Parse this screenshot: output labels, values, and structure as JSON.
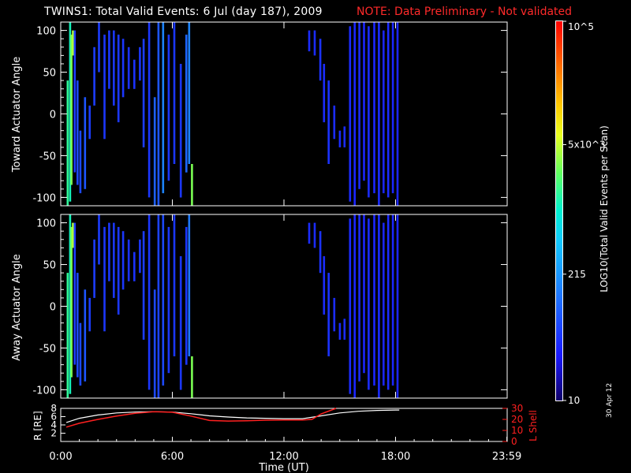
{
  "title": {
    "main": "TWINS1: Total Valid Events:  6 Jul (day 187), 2009",
    "note": "NOTE: Data Preliminary - Not validated"
  },
  "colors": {
    "background": "#000000",
    "axes": "#ffffff",
    "note": "#ff2a2a",
    "rshell_line": "#ffffff",
    "lshell_line": "#ff2020"
  },
  "chart_data": [
    {
      "type": "heatmap",
      "panel": "toward",
      "ylabel": "Toward Actuator Angle",
      "ylim": [
        -110,
        110
      ],
      "yticks": [
        "100",
        "50",
        "0",
        "-50",
        "-100"
      ],
      "xlim": [
        0,
        24
      ],
      "xtick_labels": [
        "0:00",
        "6:00",
        "12:00",
        "18:00",
        "23:59"
      ],
      "colorbar_scale": "log",
      "series": [
        {
          "name": "strips",
          "values": [
            {
              "t": 0.32,
              "ymin": -110,
              "ymax": 40,
              "c": 0.55
            },
            {
              "t": 0.45,
              "ymin": -105,
              "ymax": 110,
              "c": 0.52
            },
            {
              "t": 0.52,
              "ymin": -85,
              "ymax": 95,
              "c": 0.62
            },
            {
              "t": 0.6,
              "ymin": 70,
              "ymax": 100,
              "c": 0.66
            },
            {
              "t": 0.7,
              "ymin": -70,
              "ymax": 100,
              "c": 0.18
            },
            {
              "t": 0.85,
              "ymin": -85,
              "ymax": 40,
              "c": 0.2
            },
            {
              "t": 1.0,
              "ymin": -95,
              "ymax": -20,
              "c": 0.2
            },
            {
              "t": 1.25,
              "ymin": -90,
              "ymax": 20,
              "c": 0.22
            },
            {
              "t": 1.5,
              "ymin": -30,
              "ymax": 10,
              "c": 0.18
            },
            {
              "t": 1.75,
              "ymin": 10,
              "ymax": 80,
              "c": 0.18
            },
            {
              "t": 2.0,
              "ymin": 50,
              "ymax": 110,
              "c": 0.18
            },
            {
              "t": 2.3,
              "ymin": -30,
              "ymax": 95,
              "c": 0.17
            },
            {
              "t": 2.55,
              "ymin": 30,
              "ymax": 100,
              "c": 0.17
            },
            {
              "t": 2.8,
              "ymin": 10,
              "ymax": 100,
              "c": 0.17
            },
            {
              "t": 3.05,
              "ymin": -10,
              "ymax": 95,
              "c": 0.17
            },
            {
              "t": 3.3,
              "ymin": 20,
              "ymax": 90,
              "c": 0.17
            },
            {
              "t": 3.6,
              "ymin": 30,
              "ymax": 80,
              "c": 0.16
            },
            {
              "t": 3.9,
              "ymin": 30,
              "ymax": 65,
              "c": 0.16
            },
            {
              "t": 4.2,
              "ymin": 40,
              "ymax": 80,
              "c": 0.17
            },
            {
              "t": 4.4,
              "ymin": -40,
              "ymax": 90,
              "c": 0.18
            },
            {
              "t": 4.7,
              "ymin": -100,
              "ymax": 110,
              "c": 0.17
            },
            {
              "t": 5.0,
              "ymin": -110,
              "ymax": 20,
              "c": 0.24
            },
            {
              "t": 5.2,
              "ymin": -110,
              "ymax": 110,
              "c": 0.22
            },
            {
              "t": 5.45,
              "ymin": -95,
              "ymax": 110,
              "c": 0.3
            },
            {
              "t": 5.75,
              "ymin": -80,
              "ymax": 95,
              "c": 0.17
            },
            {
              "t": 6.05,
              "ymin": -60,
              "ymax": 110,
              "c": 0.17
            },
            {
              "t": 6.4,
              "ymin": -100,
              "ymax": 60,
              "c": 0.17
            },
            {
              "t": 6.7,
              "ymin": -70,
              "ymax": 95,
              "c": 0.25
            },
            {
              "t": 6.85,
              "ymin": -60,
              "ymax": 110,
              "c": 0.3
            },
            {
              "t": 7.0,
              "ymin": -110,
              "ymax": -60,
              "c": 0.62
            },
            {
              "t": 13.3,
              "ymin": 75,
              "ymax": 100,
              "c": 0.15
            },
            {
              "t": 13.6,
              "ymin": 70,
              "ymax": 100,
              "c": 0.15
            },
            {
              "t": 13.9,
              "ymin": 40,
              "ymax": 90,
              "c": 0.16
            },
            {
              "t": 14.1,
              "ymin": -10,
              "ymax": 60,
              "c": 0.15
            },
            {
              "t": 14.35,
              "ymin": -60,
              "ymax": 40,
              "c": 0.16
            },
            {
              "t": 14.65,
              "ymin": -30,
              "ymax": 10,
              "c": 0.15
            },
            {
              "t": 14.95,
              "ymin": -40,
              "ymax": -20,
              "c": 0.15
            },
            {
              "t": 15.2,
              "ymin": -40,
              "ymax": -15,
              "c": 0.15
            },
            {
              "t": 15.5,
              "ymin": -105,
              "ymax": 105,
              "c": 0.15
            },
            {
              "t": 15.75,
              "ymin": -110,
              "ymax": 110,
              "c": 0.14
            },
            {
              "t": 16.0,
              "ymin": -90,
              "ymax": 110,
              "c": 0.15
            },
            {
              "t": 16.25,
              "ymin": -80,
              "ymax": 110,
              "c": 0.14
            },
            {
              "t": 16.5,
              "ymin": -100,
              "ymax": 105,
              "c": 0.15
            },
            {
              "t": 16.8,
              "ymin": -95,
              "ymax": 110,
              "c": 0.14
            },
            {
              "t": 17.05,
              "ymin": -110,
              "ymax": 110,
              "c": 0.15
            },
            {
              "t": 17.3,
              "ymin": -95,
              "ymax": 100,
              "c": 0.14
            },
            {
              "t": 17.55,
              "ymin": -100,
              "ymax": 110,
              "c": 0.15
            },
            {
              "t": 17.8,
              "ymin": -95,
              "ymax": 110,
              "c": 0.14
            },
            {
              "t": 18.05,
              "ymin": -110,
              "ymax": 110,
              "c": 0.14
            }
          ]
        }
      ]
    },
    {
      "type": "heatmap",
      "panel": "away",
      "ylabel": "Away Actuator Angle",
      "ylim": [
        -110,
        110
      ],
      "yticks": [
        "100",
        "50",
        "0",
        "-50",
        "-100"
      ],
      "xlim": [
        0,
        24
      ],
      "xtick_labels": [
        "0:00",
        "6:00",
        "12:00",
        "18:00",
        "23:59"
      ],
      "colorbar_scale": "log",
      "series": [
        {
          "name": "strips",
          "values": [
            {
              "t": 0.32,
              "ymin": -110,
              "ymax": 40,
              "c": 0.55
            },
            {
              "t": 0.45,
              "ymin": -105,
              "ymax": 110,
              "c": 0.52
            },
            {
              "t": 0.52,
              "ymin": -85,
              "ymax": 95,
              "c": 0.62
            },
            {
              "t": 0.6,
              "ymin": 70,
              "ymax": 100,
              "c": 0.66
            },
            {
              "t": 0.7,
              "ymin": -70,
              "ymax": 100,
              "c": 0.18
            },
            {
              "t": 0.85,
              "ymin": -85,
              "ymax": 40,
              "c": 0.2
            },
            {
              "t": 1.0,
              "ymin": -95,
              "ymax": -20,
              "c": 0.2
            },
            {
              "t": 1.25,
              "ymin": -90,
              "ymax": 20,
              "c": 0.22
            },
            {
              "t": 1.5,
              "ymin": -30,
              "ymax": 10,
              "c": 0.18
            },
            {
              "t": 1.75,
              "ymin": 10,
              "ymax": 80,
              "c": 0.18
            },
            {
              "t": 2.0,
              "ymin": 50,
              "ymax": 110,
              "c": 0.18
            },
            {
              "t": 2.3,
              "ymin": -30,
              "ymax": 95,
              "c": 0.17
            },
            {
              "t": 2.55,
              "ymin": 30,
              "ymax": 100,
              "c": 0.17
            },
            {
              "t": 2.8,
              "ymin": 10,
              "ymax": 100,
              "c": 0.17
            },
            {
              "t": 3.05,
              "ymin": -10,
              "ymax": 95,
              "c": 0.17
            },
            {
              "t": 3.3,
              "ymin": 20,
              "ymax": 90,
              "c": 0.17
            },
            {
              "t": 3.6,
              "ymin": 30,
              "ymax": 80,
              "c": 0.16
            },
            {
              "t": 3.9,
              "ymin": 30,
              "ymax": 65,
              "c": 0.16
            },
            {
              "t": 4.2,
              "ymin": 40,
              "ymax": 80,
              "c": 0.17
            },
            {
              "t": 4.4,
              "ymin": -40,
              "ymax": 90,
              "c": 0.18
            },
            {
              "t": 4.7,
              "ymin": -100,
              "ymax": 110,
              "c": 0.17
            },
            {
              "t": 5.0,
              "ymin": -110,
              "ymax": 20,
              "c": 0.2
            },
            {
              "t": 5.2,
              "ymin": -110,
              "ymax": 110,
              "c": 0.19
            },
            {
              "t": 5.45,
              "ymin": -95,
              "ymax": 110,
              "c": 0.2
            },
            {
              "t": 5.75,
              "ymin": -80,
              "ymax": 95,
              "c": 0.17
            },
            {
              "t": 6.05,
              "ymin": -60,
              "ymax": 110,
              "c": 0.17
            },
            {
              "t": 6.4,
              "ymin": -100,
              "ymax": 60,
              "c": 0.17
            },
            {
              "t": 6.7,
              "ymin": -70,
              "ymax": 95,
              "c": 0.17
            },
            {
              "t": 6.85,
              "ymin": -60,
              "ymax": 110,
              "c": 0.28
            },
            {
              "t": 7.0,
              "ymin": -110,
              "ymax": -60,
              "c": 0.62
            },
            {
              "t": 13.3,
              "ymin": 75,
              "ymax": 100,
              "c": 0.15
            },
            {
              "t": 13.6,
              "ymin": 70,
              "ymax": 100,
              "c": 0.15
            },
            {
              "t": 13.9,
              "ymin": 40,
              "ymax": 90,
              "c": 0.16
            },
            {
              "t": 14.1,
              "ymin": -10,
              "ymax": 60,
              "c": 0.15
            },
            {
              "t": 14.35,
              "ymin": -60,
              "ymax": 40,
              "c": 0.16
            },
            {
              "t": 14.65,
              "ymin": -30,
              "ymax": 10,
              "c": 0.15
            },
            {
              "t": 14.95,
              "ymin": -40,
              "ymax": -20,
              "c": 0.15
            },
            {
              "t": 15.2,
              "ymin": -40,
              "ymax": -15,
              "c": 0.15
            },
            {
              "t": 15.5,
              "ymin": -105,
              "ymax": 105,
              "c": 0.15
            },
            {
              "t": 15.75,
              "ymin": -110,
              "ymax": 110,
              "c": 0.14
            },
            {
              "t": 16.0,
              "ymin": -90,
              "ymax": 110,
              "c": 0.15
            },
            {
              "t": 16.25,
              "ymin": -80,
              "ymax": 110,
              "c": 0.14
            },
            {
              "t": 16.5,
              "ymin": -100,
              "ymax": 105,
              "c": 0.15
            },
            {
              "t": 16.8,
              "ymin": -95,
              "ymax": 110,
              "c": 0.14
            },
            {
              "t": 17.05,
              "ymin": -110,
              "ymax": 110,
              "c": 0.15
            },
            {
              "t": 17.3,
              "ymin": -95,
              "ymax": 100,
              "c": 0.14
            },
            {
              "t": 17.55,
              "ymin": -100,
              "ymax": 110,
              "c": 0.15
            },
            {
              "t": 17.8,
              "ymin": -95,
              "ymax": 110,
              "c": 0.14
            },
            {
              "t": 18.05,
              "ymin": -110,
              "ymax": 110,
              "c": 0.14
            }
          ]
        }
      ]
    },
    {
      "type": "line",
      "panel": "orbit",
      "ylabel_left": "R [RE]",
      "ylabel_right": "L Shell",
      "xlabel": "Time (UT)",
      "xlim": [
        0,
        24
      ],
      "xtick_labels": [
        "0:00",
        "6:00",
        "12:00",
        "18:00",
        "23:59"
      ],
      "ylim_left": [
        0,
        8
      ],
      "yticks_left": [
        "8",
        "6",
        "4",
        "2"
      ],
      "ylim_right": [
        0,
        30
      ],
      "yticks_right": [
        "30",
        "20",
        "10",
        "0"
      ],
      "series": [
        {
          "axis": "left",
          "x": [
            0.3,
            1,
            2,
            3,
            4,
            5,
            6,
            7,
            8,
            9,
            10,
            11,
            12,
            13,
            14,
            15,
            16,
            17,
            18,
            18.2
          ],
          "y": [
            4.6,
            5.6,
            6.4,
            6.9,
            7.1,
            7.2,
            7.1,
            6.7,
            6.2,
            5.9,
            5.7,
            5.6,
            5.5,
            5.5,
            6.2,
            6.9,
            7.3,
            7.5,
            7.6,
            7.6
          ]
        },
        {
          "axis": "right",
          "x": [
            0.3,
            1,
            2,
            3,
            4,
            5,
            6,
            7,
            8,
            9,
            10,
            11,
            12,
            13,
            13.5,
            14,
            14.8
          ],
          "y": [
            13,
            16.5,
            20,
            23,
            25.5,
            27,
            26.5,
            23,
            19,
            18.5,
            18.8,
            19.3,
            19.5,
            19.5,
            20,
            25,
            31
          ]
        }
      ]
    },
    {
      "type": "heatmap",
      "panel": "colorbar",
      "label": "LOG10(Total Valid Events per Scan)",
      "scale": "log",
      "range": [
        10,
        100000
      ],
      "tick_labels": [
        "10",
        "215",
        "5x10^3",
        "10^5"
      ]
    }
  ],
  "date_stamp": "30 Apr 12"
}
